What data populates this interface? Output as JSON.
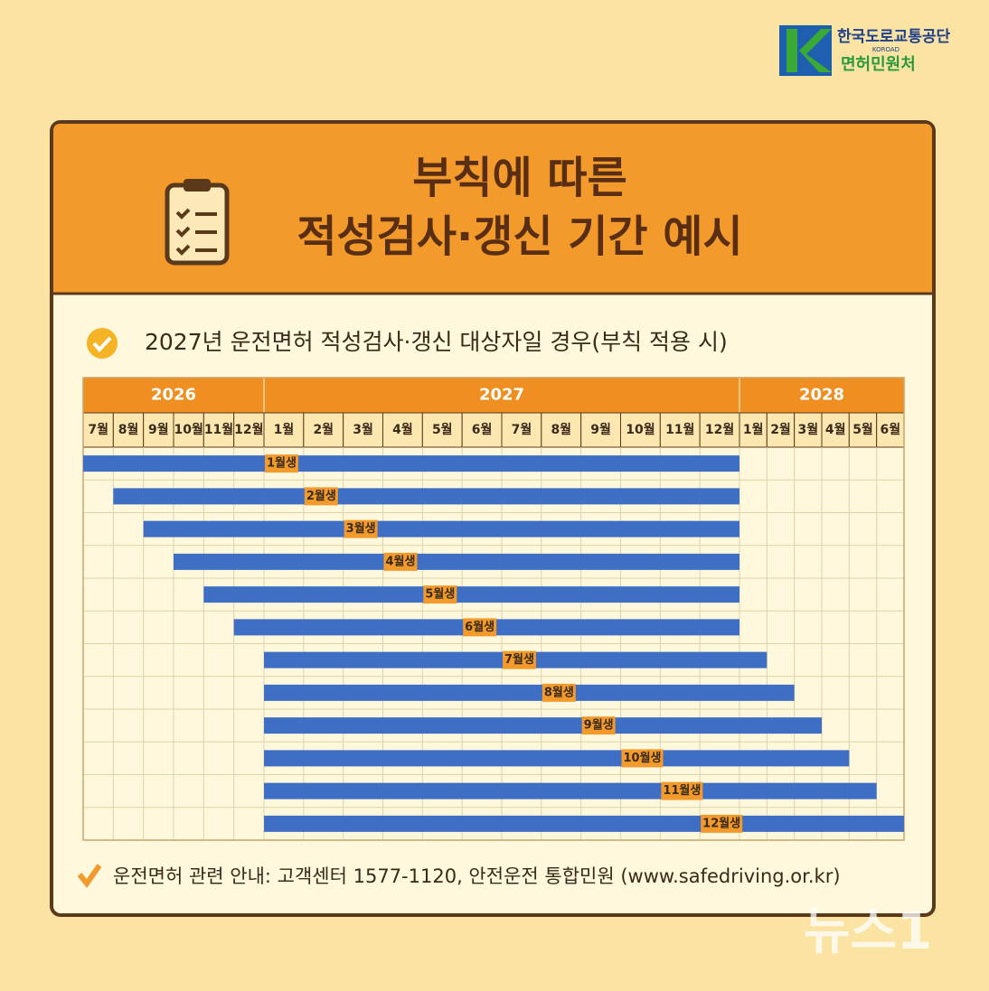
{
  "header": {
    "org": "한국도로교통공단",
    "org_en": "KOROAD",
    "sub": "면허민원처"
  },
  "title": [
    "부칙에 따른",
    "적성검사·갱신 기간 예시"
  ],
  "subtitle": "2027년 운전면허 적성검사·갱신 대상자일 경우(부칙 적용 시)",
  "timeline": {
    "years": [
      {
        "label": "2026",
        "months": [
          "7월",
          "8월",
          "9월",
          "10월",
          "11월",
          "12월"
        ]
      },
      {
        "label": "2027",
        "months": [
          "1월",
          "2월",
          "3월",
          "4월",
          "5월",
          "6월",
          "7월",
          "8월",
          "9월",
          "10월",
          "11월",
          "12월"
        ]
      },
      {
        "label": "2028",
        "months": [
          "1월",
          "2월",
          "3월",
          "4월",
          "5월",
          "6월"
        ]
      }
    ],
    "rows": [
      {
        "label": "1월생",
        "start": 0,
        "end": 17
      },
      {
        "label": "2월생",
        "start": 1,
        "end": 17
      },
      {
        "label": "3월생",
        "start": 2,
        "end": 17
      },
      {
        "label": "4월생",
        "start": 3,
        "end": 17
      },
      {
        "label": "5월생",
        "start": 4,
        "end": 17
      },
      {
        "label": "6월생",
        "start": 5,
        "end": 17
      },
      {
        "label": "7월생",
        "start": 6,
        "end": 18
      },
      {
        "label": "8월생",
        "start": 6,
        "end": 19
      },
      {
        "label": "9월생",
        "start": 6,
        "end": 20
      },
      {
        "label": "10월생",
        "start": 6,
        "end": 21
      },
      {
        "label": "11월생",
        "start": 6,
        "end": 22
      },
      {
        "label": "12월생",
        "start": 6,
        "end": 23
      }
    ]
  },
  "footer": "운전면허 관련 안내: 고객센터 1577-1120, 안전운전 통합민원 (www.safedriving.or.kr)",
  "watermark": "뉴스1"
}
